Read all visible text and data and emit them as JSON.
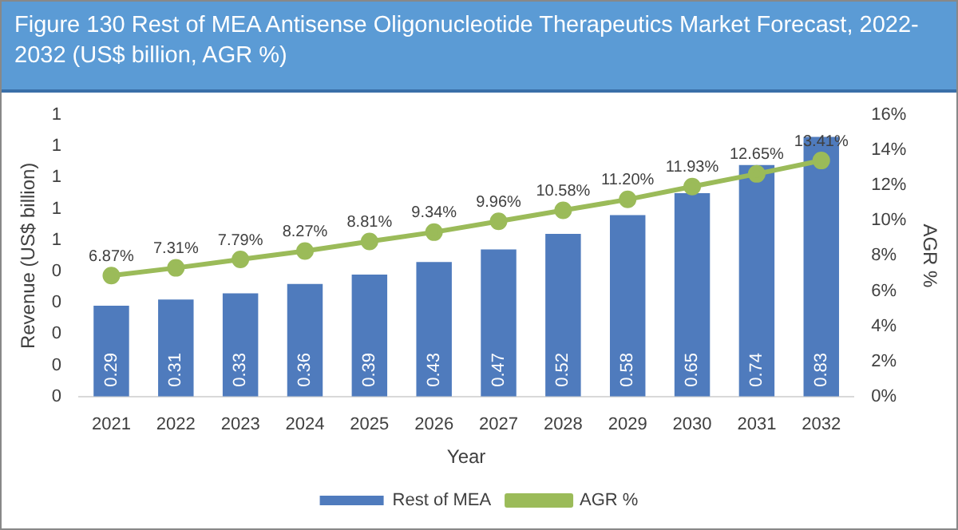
{
  "chart_data": {
    "type": "bar",
    "title": "Figure 130 Rest of MEA Antisense Oligonucleotide Therapeutics Market Forecast, 2022-2032 (US$ billion, AGR %)",
    "xlabel": "Year",
    "ylabel": "Revenue (US$ billion)",
    "y2label": "AGR %",
    "categories": [
      "2021",
      "2022",
      "2023",
      "2024",
      "2025",
      "2026",
      "2027",
      "2028",
      "2029",
      "2030",
      "2031",
      "2032"
    ],
    "series": [
      {
        "name": "Rest of MEA",
        "color": "#4f7bbd",
        "values": [
          0.29,
          0.31,
          0.33,
          0.36,
          0.39,
          0.43,
          0.47,
          0.52,
          0.58,
          0.65,
          0.74,
          0.83
        ]
      },
      {
        "name": "AGR %",
        "type": "line",
        "axis": "y2",
        "color": "#9bbb59",
        "marker": "circle",
        "value_labels": [
          "6.87%",
          "7.31%",
          "7.79%",
          "8.27%",
          "8.81%",
          "9.34%",
          "9.96%",
          "10.58%",
          "11.20%",
          "11.93%",
          "12.65%",
          "13.41%"
        ],
        "values": [
          6.87,
          7.31,
          7.79,
          8.27,
          8.81,
          9.34,
          9.96,
          10.58,
          11.2,
          11.93,
          12.65,
          13.41
        ]
      }
    ],
    "ylim": [
      0,
      0.9
    ],
    "yticks": [
      {
        "value": 0,
        "label": "0"
      },
      {
        "value": 0.1,
        "label": "0"
      },
      {
        "value": 0.2,
        "label": "0"
      },
      {
        "value": 0.3,
        "label": "0"
      },
      {
        "value": 0.4,
        "label": "0"
      },
      {
        "value": 0.5,
        "label": "1"
      },
      {
        "value": 0.6,
        "label": "1"
      },
      {
        "value": 0.7,
        "label": "1"
      },
      {
        "value": 0.8,
        "label": "1"
      },
      {
        "value": 0.9,
        "label": "1"
      }
    ],
    "y2lim": [
      0,
      16
    ],
    "y2ticks": [
      {
        "value": 0,
        "label": "0%"
      },
      {
        "value": 2,
        "label": "2%"
      },
      {
        "value": 4,
        "label": "4%"
      },
      {
        "value": 6,
        "label": "6%"
      },
      {
        "value": 8,
        "label": "8%"
      },
      {
        "value": 10,
        "label": "10%"
      },
      {
        "value": 12,
        "label": "12%"
      },
      {
        "value": 14,
        "label": "14%"
      },
      {
        "value": 16,
        "label": "16%"
      }
    ],
    "data_labels": true,
    "grid": false,
    "legend": "bottom"
  }
}
